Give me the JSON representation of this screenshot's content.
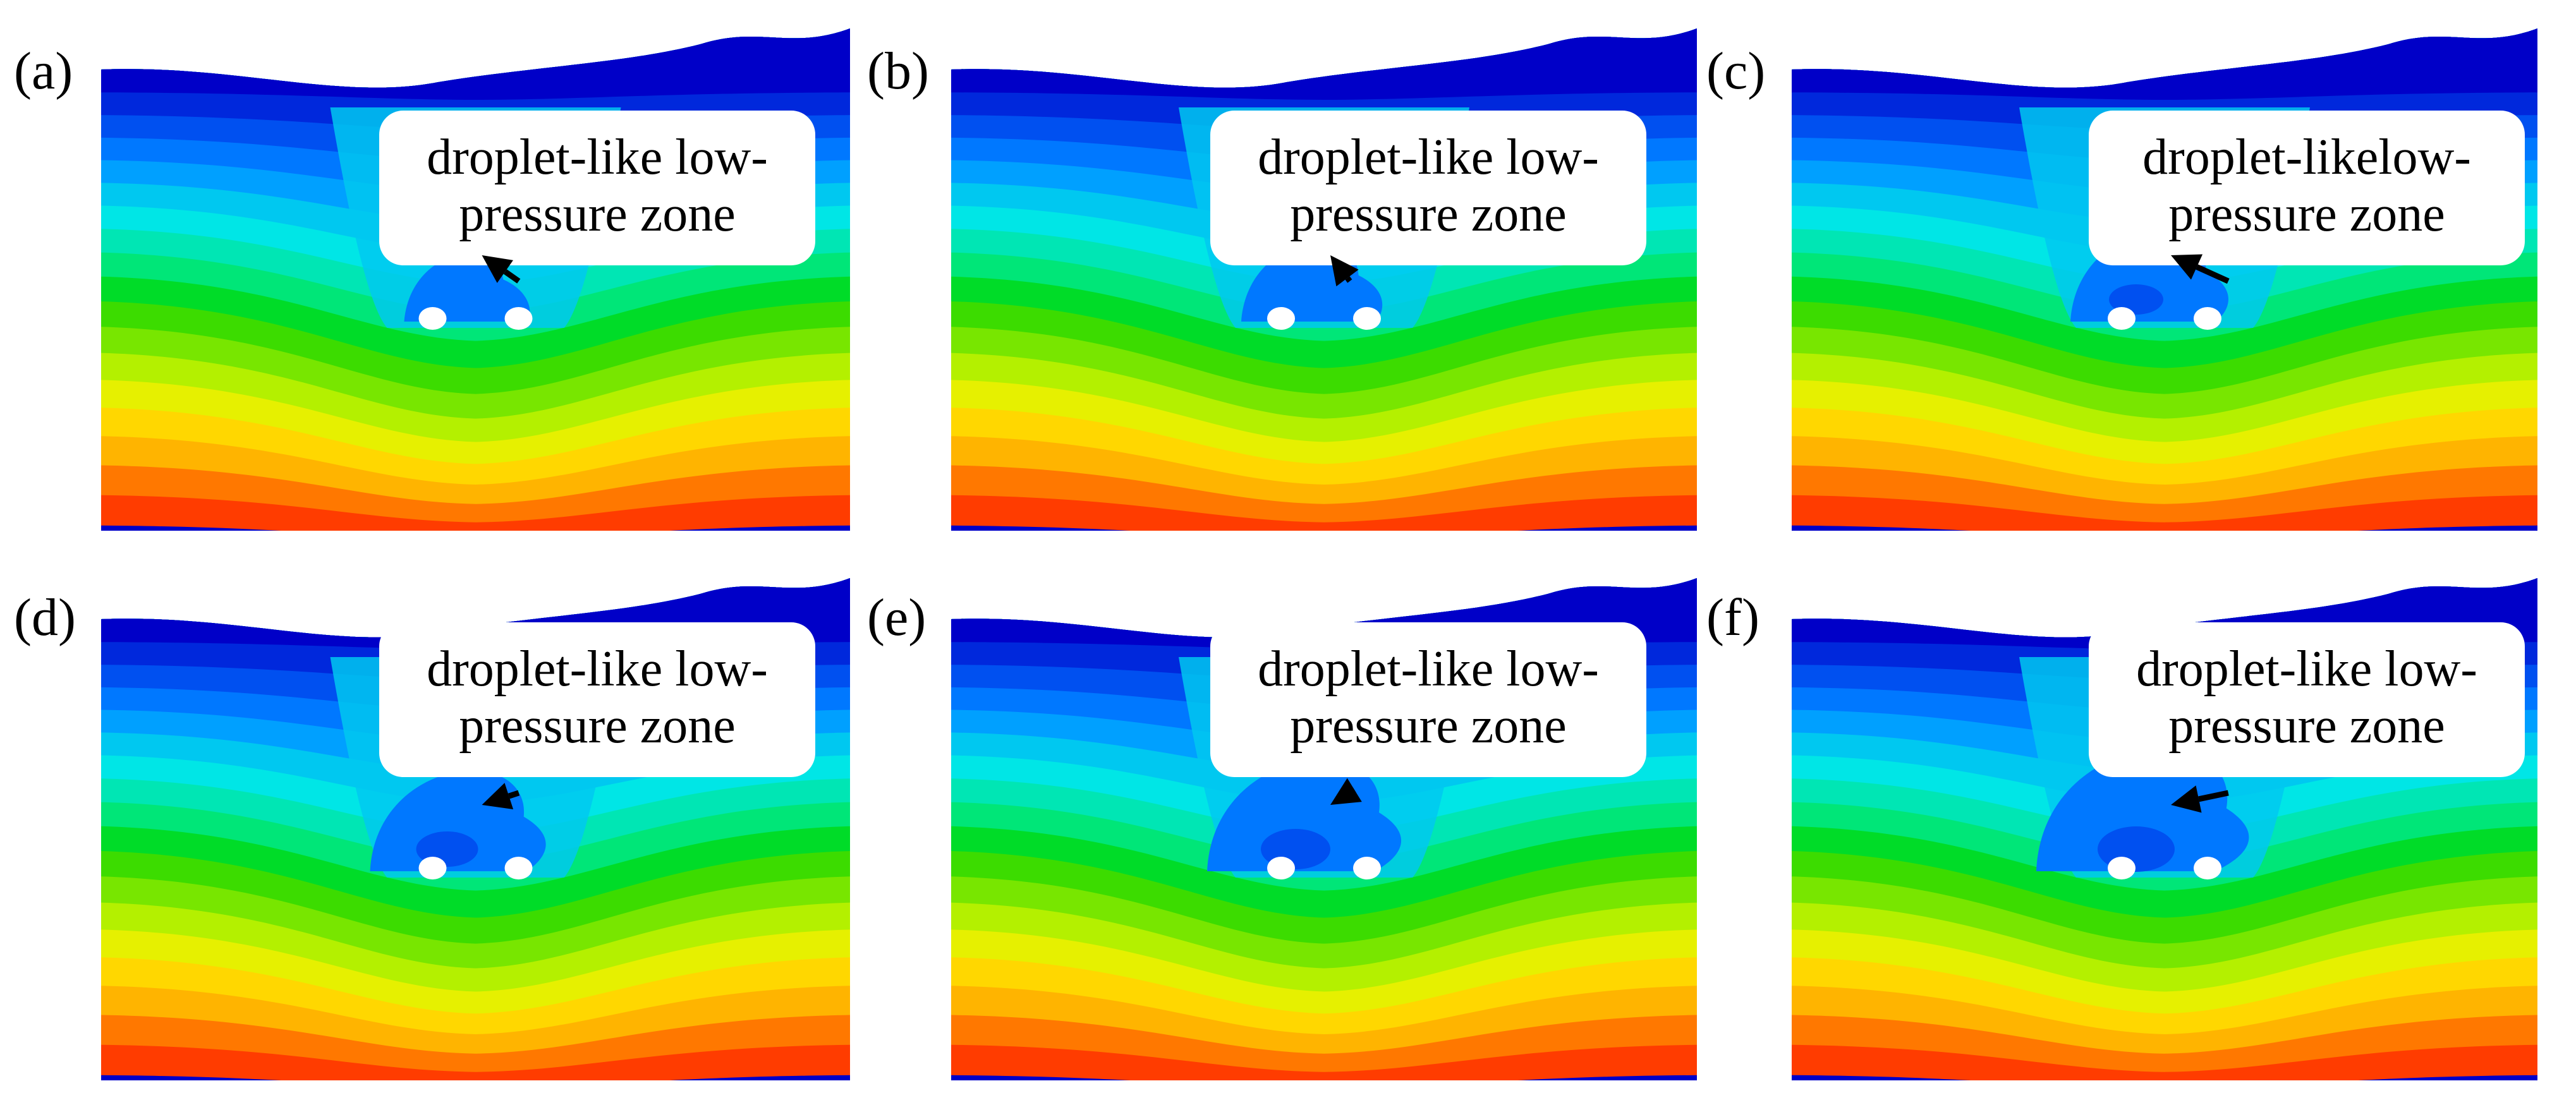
{
  "figure": {
    "panels": [
      {
        "label": "(a)",
        "callout_line1": "droplet-like low-",
        "callout_line2": "pressure zone",
        "low_pressure_zone_size": 1
      },
      {
        "label": "(b)",
        "callout_line1": "droplet-like low-",
        "callout_line2": "pressure zone",
        "low_pressure_zone_size": 2
      },
      {
        "label": "(c)",
        "callout_line1": "droplet-likelow-",
        "callout_line2": "pressure zone",
        "low_pressure_zone_size": 3
      },
      {
        "label": "(d)",
        "callout_line1": "droplet-like low-",
        "callout_line2": "pressure zone",
        "low_pressure_zone_size": 4
      },
      {
        "label": "(e)",
        "callout_line1": "droplet-like low-",
        "callout_line2": "pressure zone",
        "low_pressure_zone_size": 5
      },
      {
        "label": "(f)",
        "callout_line1": "droplet-like low-",
        "callout_line2": "pressure zone",
        "low_pressure_zone_size": 6
      }
    ],
    "colormap": [
      "#ff0000",
      "#ff3c00",
      "#ff7800",
      "#ffb400",
      "#ffd700",
      "#e6f000",
      "#b4f000",
      "#78e600",
      "#3cdc00",
      "#00dc28",
      "#00e678",
      "#00e6b4",
      "#00e6e6",
      "#00c8f0",
      "#00a0ff",
      "#0078ff",
      "#0050f0",
      "#0028dc",
      "#0000c8"
    ],
    "arrow_color": "#000000",
    "callout_box_color": "#ffffff"
  }
}
